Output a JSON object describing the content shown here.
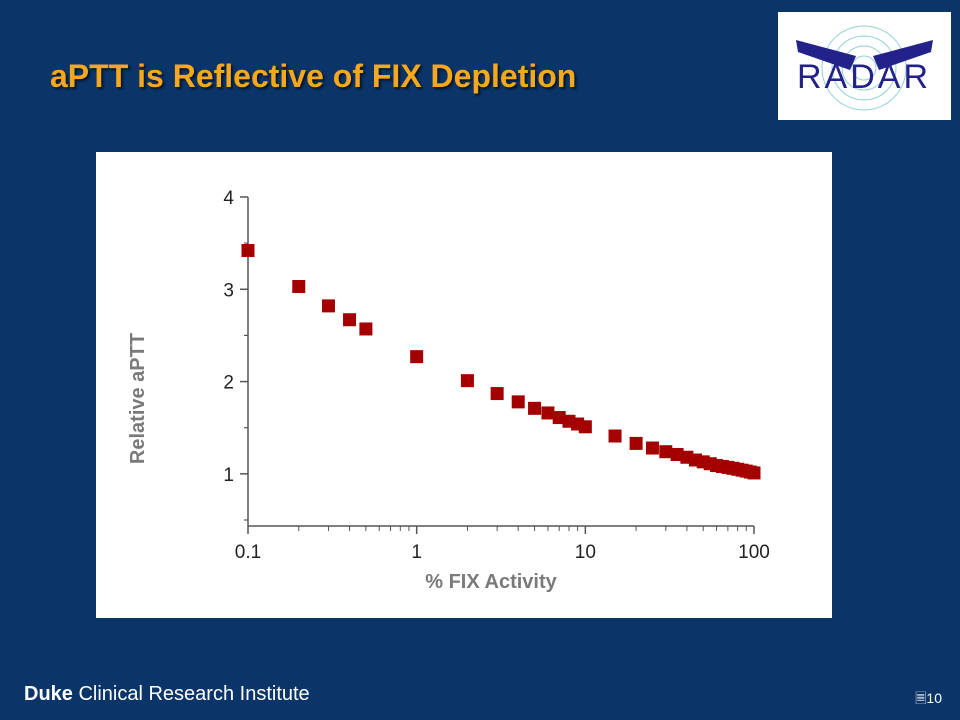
{
  "slide": {
    "title": "aPTT is Reflective of FIX Depletion",
    "footer_bold": "Duke",
    "footer_rest": " Clinical Research Institute",
    "page_number": "10"
  },
  "logo": {
    "text": "RADAR"
  },
  "colors": {
    "background": "#0b3468",
    "title": "#f6a81c",
    "marker": "#a40000"
  },
  "chart_data": {
    "type": "scatter",
    "xlabel": "% FIX Activity",
    "ylabel": "Relative aPTT",
    "x_scale": "log",
    "xlim": [
      0.1,
      100
    ],
    "ylim": [
      0.5,
      4
    ],
    "x_ticks": [
      0.1,
      1,
      10,
      100
    ],
    "x_tick_labels": [
      "0.1",
      "1",
      "10",
      "100"
    ],
    "y_ticks": [
      1,
      2,
      3,
      4
    ],
    "y_tick_labels": [
      "1",
      "2",
      "3",
      "4"
    ],
    "grid": false,
    "series": [
      {
        "marker": "square",
        "color": "#a40000",
        "points": [
          [
            0.1,
            3.42
          ],
          [
            0.2,
            3.03
          ],
          [
            0.3,
            2.82
          ],
          [
            0.4,
            2.67
          ],
          [
            0.5,
            2.57
          ],
          [
            1,
            2.27
          ],
          [
            2,
            2.01
          ],
          [
            3,
            1.87
          ],
          [
            4,
            1.78
          ],
          [
            5,
            1.71
          ],
          [
            6,
            1.66
          ],
          [
            7,
            1.61
          ],
          [
            8,
            1.57
          ],
          [
            9,
            1.54
          ],
          [
            10,
            1.51
          ],
          [
            15,
            1.41
          ],
          [
            20,
            1.33
          ],
          [
            25,
            1.28
          ],
          [
            30,
            1.24
          ],
          [
            35,
            1.21
          ],
          [
            40,
            1.18
          ],
          [
            45,
            1.15
          ],
          [
            50,
            1.13
          ],
          [
            55,
            1.11
          ],
          [
            60,
            1.09
          ],
          [
            65,
            1.08
          ],
          [
            70,
            1.07
          ],
          [
            75,
            1.06
          ],
          [
            80,
            1.05
          ],
          [
            85,
            1.04
          ],
          [
            90,
            1.03
          ],
          [
            95,
            1.02
          ],
          [
            100,
            1.01
          ]
        ]
      }
    ]
  }
}
